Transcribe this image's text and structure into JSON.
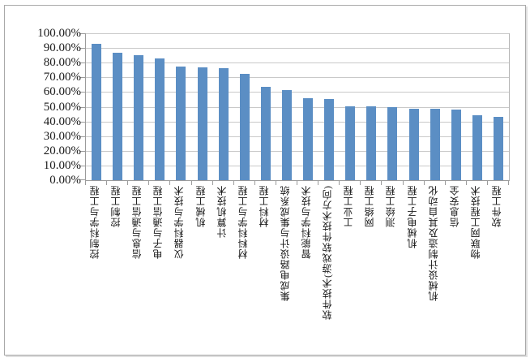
{
  "chart_data": {
    "type": "bar",
    "title": "",
    "xlabel": "",
    "ylabel": "",
    "categories": [
      "控制科学与工程",
      "控制工程",
      "信息与通信工程",
      "电子与通信工程",
      "仪器科学与技术",
      "机械工程",
      "计算机技术",
      "材料科学与工程",
      "材料工程",
      "集成电路设计与集成系统",
      "智能科学与技术",
      "软件技术(游戏软件技术方向)",
      "工业工程",
      "网络工程",
      "测绘工程",
      "机械电子工程",
      "机械设计制造及其自动化",
      "信息安全",
      "物联网工程技术",
      "软件工程"
    ],
    "values": [
      93,
      86.5,
      85,
      83,
      77.5,
      77,
      76,
      72.5,
      63.5,
      61.5,
      56,
      55,
      50.5,
      50.5,
      50,
      48.5,
      48.5,
      48,
      44,
      43
    ],
    "unit": "%",
    "ylim": [
      0,
      100
    ],
    "ytick_step": 10,
    "ytick_labels": [
      "0.00%",
      "10.00%",
      "20.00%",
      "30.00%",
      "40.00%",
      "50.00%",
      "60.00%",
      "70.00%",
      "80.00%",
      "90.00%",
      "100.00%"
    ],
    "grid": true,
    "legend": "none",
    "colors": {
      "bar": "#5B8EC4",
      "gridline": "#C9C9C9",
      "axis": "#9B9B9B",
      "text": "#1A1A1A",
      "frame_border": "#A9A9A9",
      "background": "#FFFFFF"
    }
  }
}
